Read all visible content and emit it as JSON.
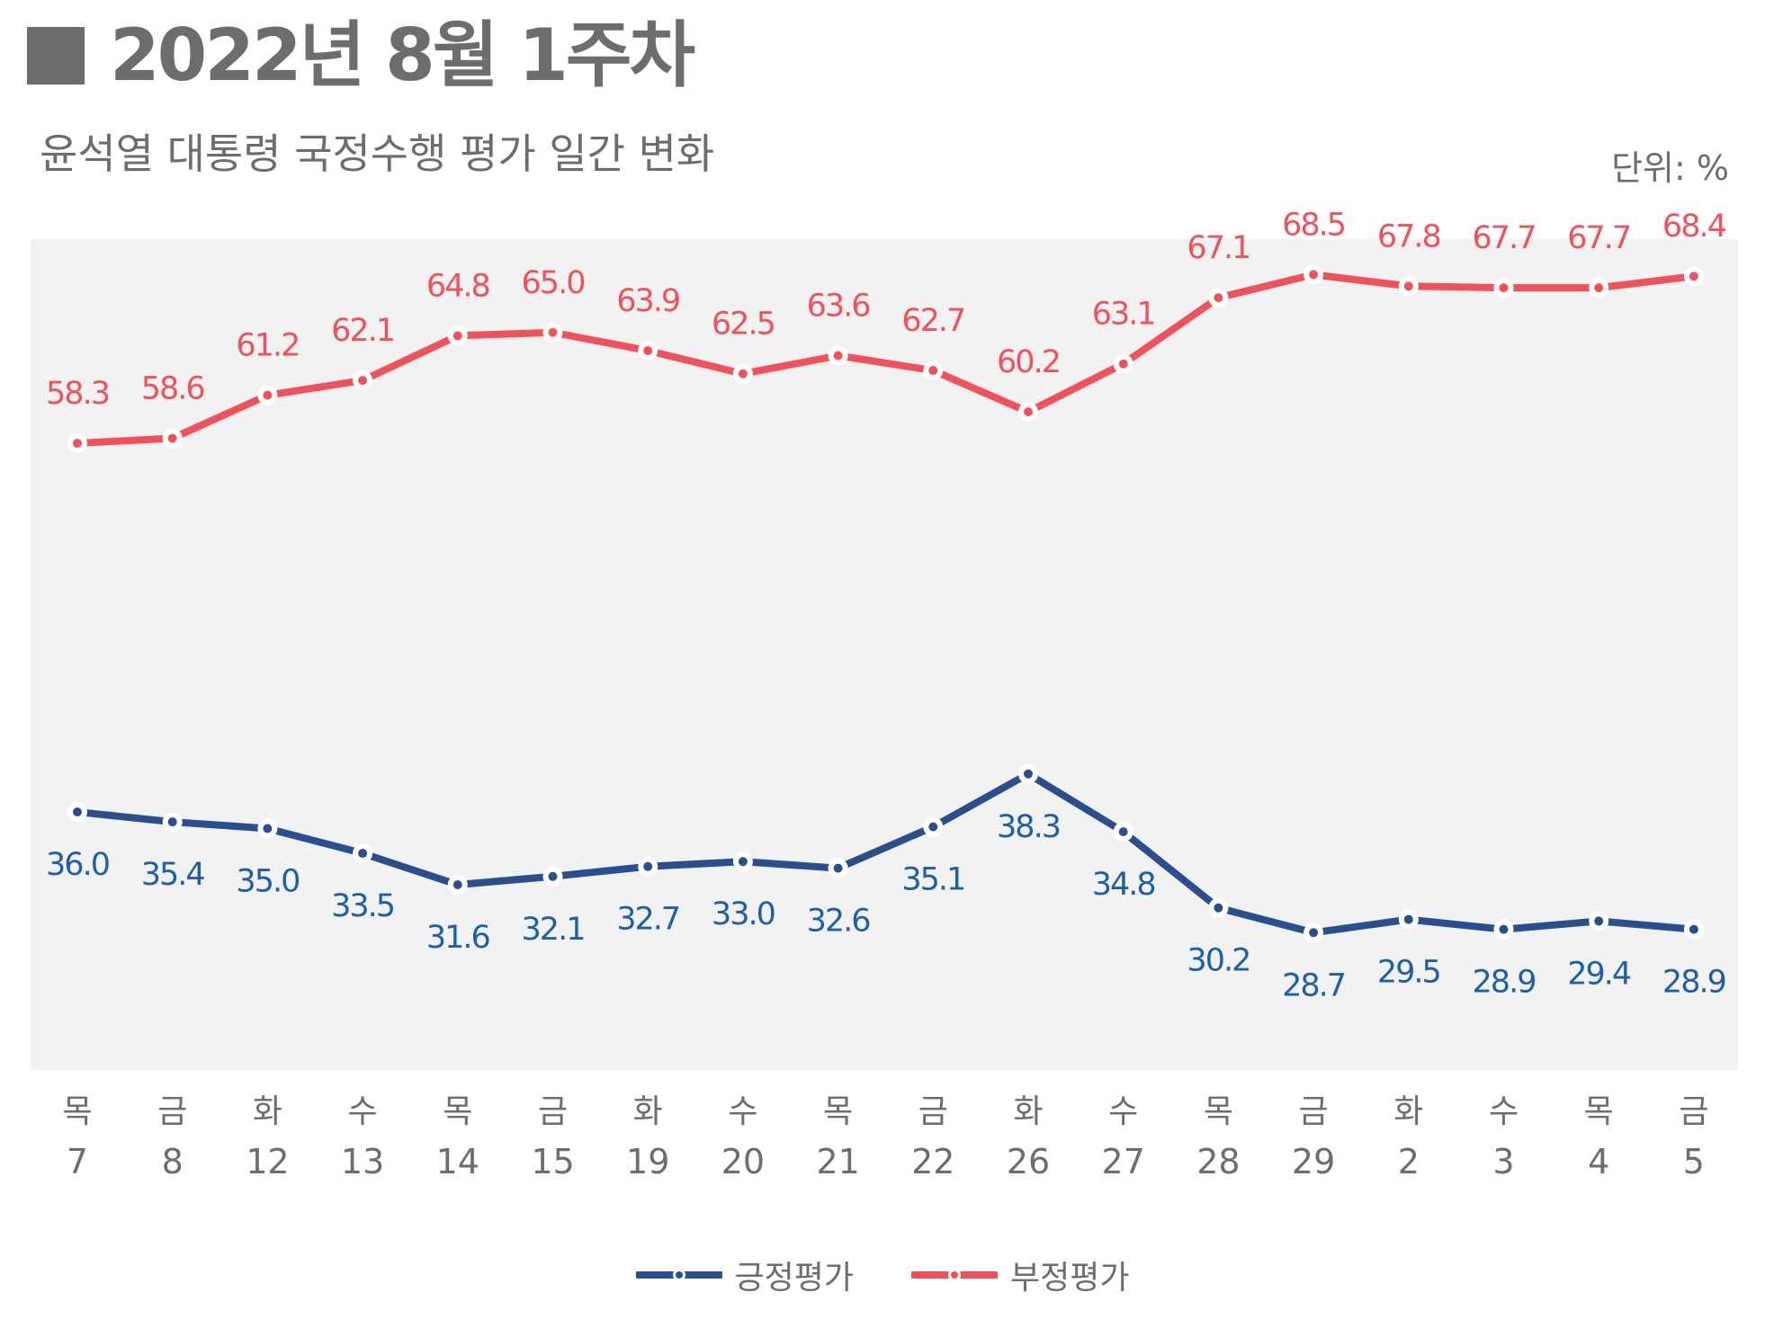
{
  "header": {
    "title": "2022년 8월 1주차",
    "subtitle": "윤석열 대통령 국정수행 평가 일간 변화",
    "unit": "단위: %"
  },
  "legend": {
    "positive_label": "긍정평가",
    "negative_label": "부정평가"
  },
  "colors": {
    "positive": "#2b4f8e",
    "positive_label": "#1f5fa8",
    "negative": "#f0515a",
    "plot_bg": "#f2f2f2",
    "text_gray": "#6d6d6d"
  },
  "chart_data": {
    "type": "line",
    "title": "2022년 8월 1주차",
    "subtitle": "윤석열 대통령 국정수행 평가 일간 변화",
    "unit": "%",
    "categories": [
      {
        "weekday": "목",
        "day": "7"
      },
      {
        "weekday": "금",
        "day": "8"
      },
      {
        "weekday": "화",
        "day": "12"
      },
      {
        "weekday": "수",
        "day": "13"
      },
      {
        "weekday": "목",
        "day": "14"
      },
      {
        "weekday": "금",
        "day": "15"
      },
      {
        "weekday": "화",
        "day": "19"
      },
      {
        "weekday": "수",
        "day": "20"
      },
      {
        "weekday": "목",
        "day": "21"
      },
      {
        "weekday": "금",
        "day": "22"
      },
      {
        "weekday": "화",
        "day": "26"
      },
      {
        "weekday": "수",
        "day": "27"
      },
      {
        "weekday": "목",
        "day": "28"
      },
      {
        "weekday": "금",
        "day": "29"
      },
      {
        "weekday": "화",
        "day": "2"
      },
      {
        "weekday": "수",
        "day": "3"
      },
      {
        "weekday": "목",
        "day": "4"
      },
      {
        "weekday": "금",
        "day": "5"
      }
    ],
    "series": [
      {
        "name": "긍정평가",
        "values": [
          36.0,
          35.4,
          35.0,
          33.5,
          31.6,
          32.1,
          32.7,
          33.0,
          32.6,
          35.1,
          38.3,
          34.8,
          30.2,
          28.7,
          29.5,
          28.9,
          29.4,
          28.9
        ]
      },
      {
        "name": "부정평가",
        "values": [
          58.3,
          58.6,
          61.2,
          62.1,
          64.8,
          65.0,
          63.9,
          62.5,
          63.6,
          62.7,
          60.2,
          63.1,
          67.1,
          68.5,
          67.8,
          67.7,
          67.7,
          68.4
        ]
      }
    ],
    "grid": false,
    "legend_position": "bottom"
  }
}
